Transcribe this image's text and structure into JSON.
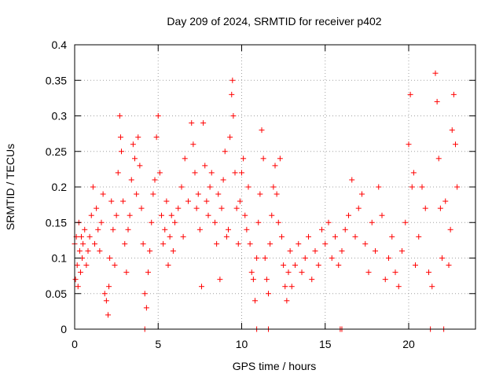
{
  "chart_data": {
    "type": "scatter",
    "title": "Day 209 of 2024, SRMTID for receiver p402",
    "xlabel": "GPS time / hours",
    "ylabel": "SRMTID / TECUs",
    "xlim": [
      0,
      24
    ],
    "ylim": [
      0,
      0.4
    ],
    "grid": true,
    "marker": "+",
    "color": "#ff0000",
    "x_ticks": [
      0,
      5,
      10,
      15,
      20
    ],
    "x_tick_labels": [
      "0",
      "5",
      "10",
      "15",
      "20"
    ],
    "y_ticks": [
      0,
      0.05,
      0.1,
      0.15,
      0.2,
      0.25,
      0.3,
      0.35,
      0.4
    ],
    "y_tick_labels": [
      "0",
      "0.05",
      "0.1",
      "0.15",
      "0.2",
      "0.25",
      "0.3",
      "0.35",
      "0.4"
    ],
    "series": [
      {
        "name": "SRMTID",
        "points": [
          [
            0.0,
            0.12
          ],
          [
            0.05,
            0.07
          ],
          [
            0.1,
            0.13
          ],
          [
            0.15,
            0.09
          ],
          [
            0.2,
            0.06
          ],
          [
            0.25,
            0.15
          ],
          [
            0.3,
            0.11
          ],
          [
            0.35,
            0.08
          ],
          [
            0.4,
            0.13
          ],
          [
            0.45,
            0.1
          ],
          [
            0.5,
            0.12
          ],
          [
            0.6,
            0.14
          ],
          [
            0.7,
            0.09
          ],
          [
            0.8,
            0.11
          ],
          [
            0.9,
            0.13
          ],
          [
            1.0,
            0.16
          ],
          [
            1.1,
            0.2
          ],
          [
            1.2,
            0.12
          ],
          [
            1.3,
            0.17
          ],
          [
            1.4,
            0.14
          ],
          [
            1.5,
            0.11
          ],
          [
            1.6,
            0.15
          ],
          [
            1.7,
            0.19
          ],
          [
            1.8,
            0.05
          ],
          [
            1.9,
            0.04
          ],
          [
            2.0,
            0.02
          ],
          [
            2.05,
            0.06
          ],
          [
            2.1,
            0.1
          ],
          [
            2.2,
            0.18
          ],
          [
            2.3,
            0.14
          ],
          [
            2.4,
            0.09
          ],
          [
            2.5,
            0.16
          ],
          [
            2.6,
            0.22
          ],
          [
            2.7,
            0.3
          ],
          [
            2.75,
            0.27
          ],
          [
            2.8,
            0.25
          ],
          [
            2.9,
            0.18
          ],
          [
            3.0,
            0.12
          ],
          [
            3.1,
            0.08
          ],
          [
            3.2,
            0.14
          ],
          [
            3.3,
            0.16
          ],
          [
            3.4,
            0.21
          ],
          [
            3.5,
            0.26
          ],
          [
            3.6,
            0.24
          ],
          [
            3.7,
            0.19
          ],
          [
            3.8,
            0.27
          ],
          [
            3.9,
            0.23
          ],
          [
            4.0,
            0.17
          ],
          [
            4.1,
            0.12
          ],
          [
            4.2,
            0.05
          ],
          [
            4.3,
            0.03
          ],
          [
            4.4,
            0.08
          ],
          [
            4.5,
            0.11
          ],
          [
            4.6,
            0.15
          ],
          [
            4.7,
            0.19
          ],
          [
            4.8,
            0.21
          ],
          [
            4.9,
            0.27
          ],
          [
            5.0,
            0.3
          ],
          [
            5.1,
            0.22
          ],
          [
            5.2,
            0.16
          ],
          [
            5.3,
            0.12
          ],
          [
            5.4,
            0.14
          ],
          [
            5.5,
            0.18
          ],
          [
            5.6,
            0.09
          ],
          [
            5.7,
            0.13
          ],
          [
            5.8,
            0.16
          ],
          [
            5.9,
            0.11
          ],
          [
            6.0,
            0.15
          ],
          [
            6.2,
            0.17
          ],
          [
            6.4,
            0.2
          ],
          [
            6.5,
            0.13
          ],
          [
            6.6,
            0.24
          ],
          [
            6.8,
            0.18
          ],
          [
            7.0,
            0.29
          ],
          [
            7.1,
            0.26
          ],
          [
            7.2,
            0.22
          ],
          [
            7.3,
            0.17
          ],
          [
            7.4,
            0.19
          ],
          [
            7.5,
            0.14
          ],
          [
            7.6,
            0.06
          ],
          [
            7.7,
            0.29
          ],
          [
            7.8,
            0.23
          ],
          [
            7.9,
            0.18
          ],
          [
            8.0,
            0.16
          ],
          [
            8.1,
            0.2
          ],
          [
            8.2,
            0.22
          ],
          [
            8.4,
            0.15
          ],
          [
            8.5,
            0.12
          ],
          [
            8.6,
            0.19
          ],
          [
            8.7,
            0.07
          ],
          [
            8.8,
            0.17
          ],
          [
            8.9,
            0.21
          ],
          [
            9.0,
            0.25
          ],
          [
            9.1,
            0.13
          ],
          [
            9.2,
            0.14
          ],
          [
            9.3,
            0.27
          ],
          [
            9.4,
            0.33
          ],
          [
            9.45,
            0.35
          ],
          [
            9.5,
            0.3
          ],
          [
            9.6,
            0.22
          ],
          [
            9.7,
            0.17
          ],
          [
            9.8,
            0.12
          ],
          [
            9.9,
            0.18
          ],
          [
            10.0,
            0.22
          ],
          [
            10.1,
            0.24
          ],
          [
            10.2,
            0.16
          ],
          [
            10.3,
            0.14
          ],
          [
            10.4,
            0.2
          ],
          [
            10.5,
            0.12
          ],
          [
            10.6,
            0.08
          ],
          [
            10.7,
            0.07
          ],
          [
            10.8,
            0.04
          ],
          [
            10.9,
            0.1
          ],
          [
            11.0,
            0.15
          ],
          [
            11.1,
            0.19
          ],
          [
            11.2,
            0.28
          ],
          [
            11.3,
            0.24
          ],
          [
            11.4,
            0.1
          ],
          [
            11.5,
            0.07
          ],
          [
            11.6,
            0.05
          ],
          [
            11.7,
            0.12
          ],
          [
            11.8,
            0.16
          ],
          [
            11.9,
            0.2
          ],
          [
            12.0,
            0.23
          ],
          [
            12.1,
            0.19
          ],
          [
            12.2,
            0.15
          ],
          [
            12.3,
            0.24
          ],
          [
            12.4,
            0.13
          ],
          [
            12.5,
            0.09
          ],
          [
            12.6,
            0.06
          ],
          [
            12.7,
            0.04
          ],
          [
            12.8,
            0.08
          ],
          [
            12.9,
            0.11
          ],
          [
            13.0,
            0.06
          ],
          [
            13.2,
            0.09
          ],
          [
            13.4,
            0.12
          ],
          [
            13.6,
            0.08
          ],
          [
            13.8,
            0.1
          ],
          [
            14.0,
            0.13
          ],
          [
            14.2,
            0.07
          ],
          [
            14.4,
            0.11
          ],
          [
            14.6,
            0.09
          ],
          [
            14.8,
            0.14
          ],
          [
            15.0,
            0.12
          ],
          [
            15.2,
            0.15
          ],
          [
            15.4,
            0.1
          ],
          [
            15.6,
            0.13
          ],
          [
            15.8,
            0.09
          ],
          [
            16.0,
            0.11
          ],
          [
            16.2,
            0.14
          ],
          [
            16.4,
            0.16
          ],
          [
            16.6,
            0.21
          ],
          [
            16.8,
            0.13
          ],
          [
            17.0,
            0.17
          ],
          [
            17.2,
            0.19
          ],
          [
            17.4,
            0.12
          ],
          [
            17.6,
            0.08
          ],
          [
            17.8,
            0.15
          ],
          [
            18.0,
            0.11
          ],
          [
            18.2,
            0.2
          ],
          [
            18.4,
            0.16
          ],
          [
            18.6,
            0.07
          ],
          [
            18.8,
            0.1
          ],
          [
            19.0,
            0.13
          ],
          [
            19.2,
            0.08
          ],
          [
            19.4,
            0.06
          ],
          [
            19.6,
            0.11
          ],
          [
            19.8,
            0.15
          ],
          [
            20.0,
            0.26
          ],
          [
            20.1,
            0.33
          ],
          [
            20.2,
            0.2
          ],
          [
            20.3,
            0.22
          ],
          [
            20.4,
            0.09
          ],
          [
            20.6,
            0.13
          ],
          [
            20.8,
            0.2
          ],
          [
            21.0,
            0.17
          ],
          [
            21.2,
            0.08
          ],
          [
            21.4,
            0.06
          ],
          [
            21.6,
            0.36
          ],
          [
            21.7,
            0.32
          ],
          [
            21.8,
            0.24
          ],
          [
            21.9,
            0.17
          ],
          [
            22.0,
            0.1
          ],
          [
            22.2,
            0.18
          ],
          [
            22.4,
            0.09
          ],
          [
            22.5,
            0.14
          ],
          [
            22.6,
            0.28
          ],
          [
            22.7,
            0.33
          ],
          [
            22.8,
            0.26
          ],
          [
            22.9,
            0.2
          ]
        ]
      }
    ],
    "zero_markers_x": [
      4.2,
      10.9,
      11.6,
      15.9,
      16.0,
      21.3,
      22.1
    ]
  }
}
